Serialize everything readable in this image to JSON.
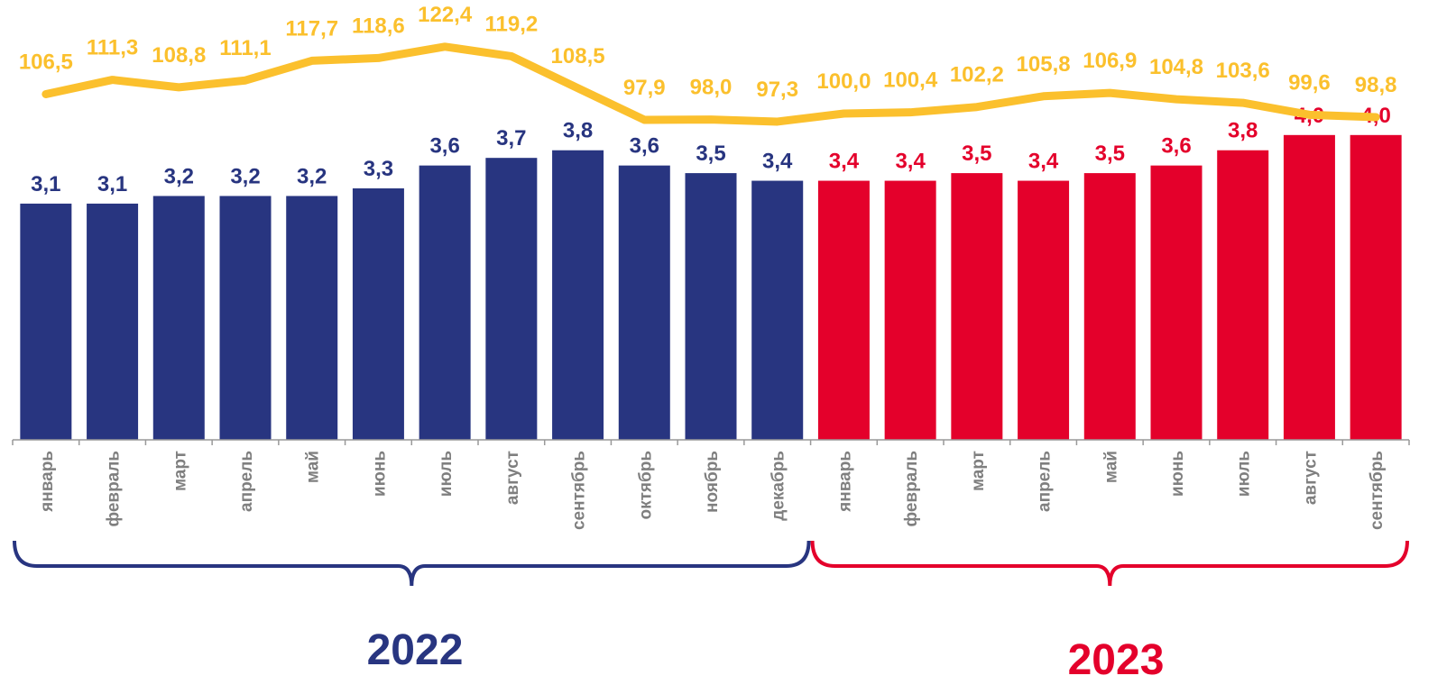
{
  "chart_data": {
    "type": "bar",
    "categories": [
      "январь",
      "февраль",
      "март",
      "апрель",
      "май",
      "июнь",
      "июль",
      "август",
      "сентябрь",
      "октябрь",
      "ноябрь",
      "декабрь",
      "январь",
      "февраль",
      "март",
      "апрель",
      "май",
      "июнь",
      "июль",
      "август",
      "сентябрь"
    ],
    "series": [
      {
        "name": "2022",
        "color": "#283580",
        "values": [
          3.1,
          3.1,
          3.2,
          3.2,
          3.2,
          3.3,
          3.6,
          3.7,
          3.8,
          3.6,
          3.5,
          3.4,
          null,
          null,
          null,
          null,
          null,
          null,
          null,
          null,
          null
        ],
        "value_labels": [
          "3,1",
          "3,1",
          "3,2",
          "3,2",
          "3,2",
          "3,3",
          "3,6",
          "3,7",
          "3,8",
          "3,6",
          "3,5",
          "3,4",
          null,
          null,
          null,
          null,
          null,
          null,
          null,
          null,
          null
        ]
      },
      {
        "name": "2023",
        "color": "#e4002b",
        "values": [
          null,
          null,
          null,
          null,
          null,
          null,
          null,
          null,
          null,
          null,
          null,
          null,
          3.4,
          3.4,
          3.5,
          3.4,
          3.5,
          3.6,
          3.8,
          4.0,
          4.0
        ],
        "value_labels": [
          null,
          null,
          null,
          null,
          null,
          null,
          null,
          null,
          null,
          null,
          null,
          null,
          "3,4",
          "3,4",
          "3,5",
          "3,4",
          "3,5",
          "3,6",
          "3,8",
          "4,0",
          "4,0"
        ]
      },
      {
        "type": "line",
        "axis": "y2",
        "color": "#fbc02d",
        "values": [
          106.5,
          111.3,
          108.8,
          111.1,
          117.7,
          118.6,
          122.4,
          119.2,
          108.5,
          97.9,
          98.0,
          97.3,
          100.0,
          100.4,
          102.2,
          105.8,
          106.9,
          104.8,
          103.6,
          99.6,
          98.8
        ],
        "value_labels": [
          "106,5",
          "111,3",
          "108,8",
          "111,1",
          "117,7",
          "118,6",
          "122,4",
          "119,2",
          "108,5",
          "97,9",
          "98,0",
          "97,3",
          "100,0",
          "100,4",
          "102,2",
          "105,8",
          "106,9",
          "104,8",
          "103,6",
          "99,6",
          "98,8"
        ]
      }
    ],
    "ylim": [
      0,
      5.5
    ],
    "y2lim": [
      -9.3,
      131.1
    ]
  }
}
